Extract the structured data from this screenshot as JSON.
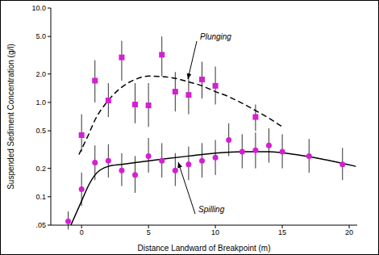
{
  "chart_data": {
    "type": "scatter",
    "x_label": "Distance Landward of Breakpoint (m)",
    "y_label": "Suspended Sediment Concentration (g/l)",
    "log": "y",
    "grid": false,
    "xlim": [
      -2.3,
      20.6
    ],
    "xticks": [
      0,
      5,
      10,
      15,
      20
    ],
    "ylim": [
      0.05,
      10
    ],
    "yticks": [
      {
        "value": 0.05,
        "label": ".05"
      },
      0.1,
      0.2,
      0.5,
      {
        "value": 1,
        "label": "1.0"
      },
      {
        "value": 2,
        "label": "2.0"
      },
      {
        "value": 5,
        "label": "5.0"
      },
      {
        "value": 10,
        "label": "10.0"
      }
    ],
    "series": [
      {
        "type": "scatter",
        "marker": "square",
        "color": "#d41fd2",
        "x": [
          0,
          1,
          2,
          3,
          4,
          5,
          6,
          7,
          8,
          9,
          10,
          13
        ],
        "values": [
          0.45,
          1.7,
          1.05,
          3.0,
          0.95,
          0.93,
          3.2,
          1.3,
          1.2,
          1.75,
          1.5,
          0.7
        ],
        "error_low": [
          0.3,
          1.0,
          0.7,
          1.7,
          0.6,
          0.55,
          1.9,
          0.8,
          0.75,
          1.1,
          0.95,
          0.5
        ],
        "error_high": [
          0.75,
          2.8,
          1.6,
          4.5,
          1.6,
          1.6,
          5.0,
          2.1,
          1.9,
          2.7,
          2.4,
          0.95
        ]
      },
      {
        "type": "scatter",
        "marker": "circle",
        "color": "#d41fd2",
        "x": [
          -1,
          0,
          1,
          2,
          3,
          4,
          5,
          6,
          7,
          8,
          9,
          10,
          11,
          12,
          13,
          14,
          15,
          17,
          19.5
        ],
        "values": [
          0.055,
          0.12,
          0.23,
          0.24,
          0.19,
          0.17,
          0.27,
          0.24,
          0.19,
          0.22,
          0.24,
          0.26,
          0.4,
          0.3,
          0.31,
          0.35,
          0.3,
          0.27,
          0.22
        ],
        "error_low": [
          0.045,
          0.08,
          0.15,
          0.16,
          0.13,
          0.11,
          0.18,
          0.16,
          0.13,
          0.15,
          0.16,
          0.17,
          0.27,
          0.2,
          0.2,
          0.23,
          0.2,
          0.18,
          0.15
        ],
        "error_high": [
          0.07,
          0.18,
          0.35,
          0.36,
          0.29,
          0.27,
          0.42,
          0.37,
          0.29,
          0.34,
          0.37,
          0.4,
          0.6,
          0.46,
          0.48,
          0.53,
          0.46,
          0.41,
          0.33
        ]
      },
      {
        "name": "Plunging",
        "type": "line",
        "color": "#000000",
        "line_style": "dashed",
        "x": [
          -0.2,
          0.5,
          1,
          2,
          3,
          4,
          5,
          6,
          7,
          8,
          9,
          10,
          11,
          12,
          13,
          14,
          15
        ],
        "values": [
          0.28,
          0.45,
          0.65,
          1.05,
          1.45,
          1.75,
          1.9,
          1.88,
          1.8,
          1.65,
          1.5,
          1.3,
          1.15,
          0.98,
          0.82,
          0.68,
          0.55
        ]
      },
      {
        "name": "Spilling",
        "type": "line",
        "color": "#000000",
        "line_style": "solid",
        "x": [
          -0.8,
          0,
          0.5,
          1,
          2,
          3,
          4,
          6,
          8,
          10,
          12,
          14,
          16,
          18,
          20.5
        ],
        "values": [
          0.05,
          0.09,
          0.13,
          0.17,
          0.21,
          0.22,
          0.23,
          0.25,
          0.27,
          0.29,
          0.3,
          0.3,
          0.28,
          0.25,
          0.21
        ]
      }
    ]
  }
}
